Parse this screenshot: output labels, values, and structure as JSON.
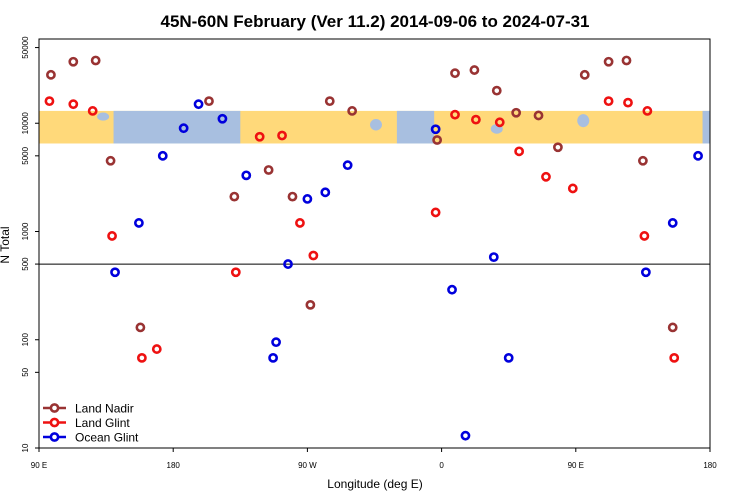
{
  "chart_data": {
    "type": "scatter",
    "title": "45N-60N February (Ver 11.2)   2014-09-06 to 2024-07-31",
    "xlabel": "Longitude (deg E)",
    "ylabel": "N Total",
    "yscale": "log",
    "xlim": [
      90,
      540
    ],
    "ylim": [
      10,
      60000
    ],
    "x_ticks": [
      {
        "value": 90,
        "label": "90 E"
      },
      {
        "value": 180,
        "label": "180"
      },
      {
        "value": 270,
        "label": "90 W"
      },
      {
        "value": 360,
        "label": "0"
      },
      {
        "value": 450,
        "label": "90 E"
      },
      {
        "value": 540,
        "label": "180"
      }
    ],
    "y_ticks": [
      {
        "value": 10,
        "label": "10"
      },
      {
        "value": 50,
        "label": "50"
      },
      {
        "value": 100,
        "label": "100"
      },
      {
        "value": 500,
        "label": "500"
      },
      {
        "value": 1000,
        "label": "1000"
      },
      {
        "value": 5000,
        "label": "5000"
      },
      {
        "value": 10000,
        "label": "10000"
      },
      {
        "value": 50000,
        "label": "50000"
      }
    ],
    "reference_line": 500,
    "map_band": {
      "y_from": 6500,
      "y_to": 13000
    },
    "legend_position": "bottom-left",
    "series": [
      {
        "name": "Land Nadir",
        "color": "#993333",
        "points": [
          [
            98,
            28000
          ],
          [
            113,
            37000
          ],
          [
            128,
            38000
          ],
          [
            138,
            4500
          ],
          [
            158,
            130
          ],
          [
            204,
            16000
          ],
          [
            221,
            2100
          ],
          [
            244,
            3700
          ],
          [
            260,
            2100
          ],
          [
            272,
            210
          ],
          [
            285,
            16000
          ],
          [
            300,
            13000
          ],
          [
            357,
            7000
          ],
          [
            369,
            29000
          ],
          [
            382,
            31000
          ],
          [
            397,
            20000
          ],
          [
            410,
            12500
          ],
          [
            425,
            11800
          ],
          [
            438,
            6000
          ],
          [
            456,
            28000
          ],
          [
            472,
            37000
          ],
          [
            484,
            38000
          ],
          [
            495,
            4500
          ],
          [
            515,
            130
          ]
        ]
      },
      {
        "name": "Land Glint",
        "color": "#ee1111",
        "points": [
          [
            97,
            16000
          ],
          [
            113,
            15000
          ],
          [
            126,
            13000
          ],
          [
            139,
            910
          ],
          [
            159,
            68
          ],
          [
            169,
            82
          ],
          [
            222,
            420
          ],
          [
            238,
            7500
          ],
          [
            253,
            7700
          ],
          [
            265,
            1200
          ],
          [
            274,
            600
          ],
          [
            356,
            1500
          ],
          [
            369,
            12000
          ],
          [
            383,
            10800
          ],
          [
            399,
            10200
          ],
          [
            412,
            5500
          ],
          [
            430,
            3200
          ],
          [
            448,
            2500
          ],
          [
            472,
            16000
          ],
          [
            485,
            15500
          ],
          [
            498,
            13000
          ],
          [
            496,
            910
          ],
          [
            516,
            68
          ]
        ]
      },
      {
        "name": "Ocean Glint",
        "color": "#0000dd",
        "points": [
          [
            141,
            420
          ],
          [
            157,
            1200
          ],
          [
            173,
            5000
          ],
          [
            187,
            9000
          ],
          [
            197,
            15000
          ],
          [
            213,
            11000
          ],
          [
            229,
            3300
          ],
          [
            247,
            68
          ],
          [
            249,
            95
          ],
          [
            257,
            500
          ],
          [
            270,
            2000
          ],
          [
            282,
            2300
          ],
          [
            297,
            4100
          ],
          [
            356,
            8800
          ],
          [
            367,
            290
          ],
          [
            376,
            13
          ],
          [
            395,
            580
          ],
          [
            405,
            68
          ],
          [
            497,
            420
          ],
          [
            515,
            1200
          ],
          [
            532,
            5000
          ]
        ]
      }
    ]
  }
}
